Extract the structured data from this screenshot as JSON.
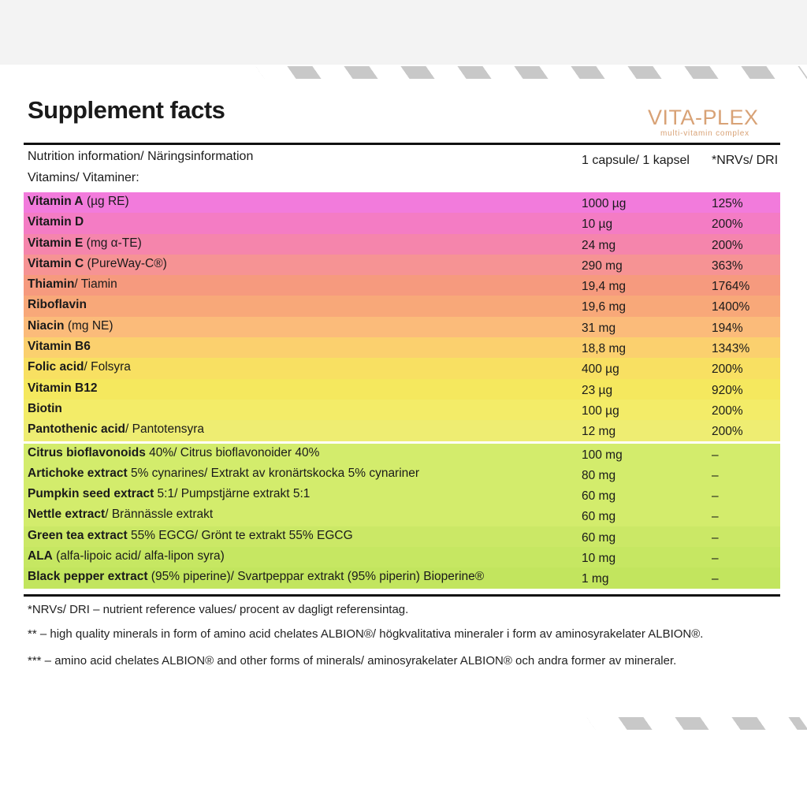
{
  "header": {
    "title": "Supplement facts",
    "brand": "VITA-PLEX",
    "tagline": "multi-vitamin complex"
  },
  "table": {
    "heading": "Nutrition information/ Näringsinformation",
    "amount_heading": "1 capsule/ 1 kapsel",
    "nrv_heading": "*NRVs/ DRI",
    "section": "Vitamins/ Vitaminer:",
    "rows": [
      {
        "name": "Vitamin A",
        "detail": " (µg RE)",
        "amount": "1000 µg",
        "nrv": "125%"
      },
      {
        "name": "Vitamin D",
        "amount": "10 µg",
        "nrv": "200%"
      },
      {
        "name": "Vitamin E",
        "detail": " (mg α-TE)",
        "amount": "24 mg",
        "nrv": "200%"
      },
      {
        "name": "Vitamin C",
        "detail": " (PureWay-C®)",
        "amount": "290 mg",
        "nrv": "363%"
      },
      {
        "name": "Thiamin",
        "detail": "/ Tiamin",
        "amount": "19,4 mg",
        "nrv": "1764%"
      },
      {
        "name": "Riboflavin",
        "amount": "19,6 mg",
        "nrv": "1400%"
      },
      {
        "name": "Niacin",
        "detail": " (mg NE)",
        "amount": "31 mg",
        "nrv": "194%"
      },
      {
        "name": "Vitamin B6",
        "amount": "18,8 mg",
        "nrv": "1343%"
      },
      {
        "name": "Folic acid",
        "detail": "/ Folsyra",
        "amount": "400 µg",
        "nrv": "200%"
      },
      {
        "name": "Vitamin B12",
        "amount": "23 µg",
        "nrv": "920%"
      },
      {
        "name": "Biotin",
        "amount": "100 µg",
        "nrv": "200%"
      },
      {
        "name": "Pantothenic acid",
        "detail": "/ Pantotensyra",
        "amount": "12 mg",
        "nrv": "200%"
      },
      {
        "name": "Citrus bioflavonoids",
        "detail": " 40%/ Citrus bioflavonoider 40%",
        "amount": "100 mg",
        "nrv": "–"
      },
      {
        "name": "Artichoke extract",
        "detail": " 5% cynarines/ Extrakt av kronärtskocka 5% cynariner",
        "amount": "80 mg",
        "nrv": "–"
      },
      {
        "name": "Pumpkin seed extract",
        "detail": " 5:1/ Pumpstjärne extrakt 5:1",
        "amount": "60 mg",
        "nrv": "–"
      },
      {
        "name": "Nettle extract",
        "detail": "/ Brännässle extrakt",
        "amount": "60 mg",
        "nrv": "–"
      },
      {
        "name": "Green tea extract",
        "detail": " 55% EGCG/ Grönt te extrakt 55% EGCG",
        "amount": "60 mg",
        "nrv": "–"
      },
      {
        "name": "ALA",
        "detail": " (alfa-lipoic acid/ alfa-lipon syra)",
        "amount": "10 mg",
        "nrv": "–"
      },
      {
        "name": "Black pepper extract",
        "detail": " (95% piperine)/ Svartpeppar extrakt (95% piperin) Bioperine®",
        "amount": "1 mg",
        "nrv": "–"
      }
    ]
  },
  "footnotes": [
    "*NRVs/ DRI – nutrient reference values/ procent av dagligt referensintag.",
    "** – high quality minerals in form of amino acid chelates ALBION®/ högkvalitativa mineraler i form av aminosyrakelater ALBION®.",
    "*** – amino acid chelates ALBION® and other forms of minerals/ aminosyrakelater ALBION® och andra former av mineraler."
  ]
}
